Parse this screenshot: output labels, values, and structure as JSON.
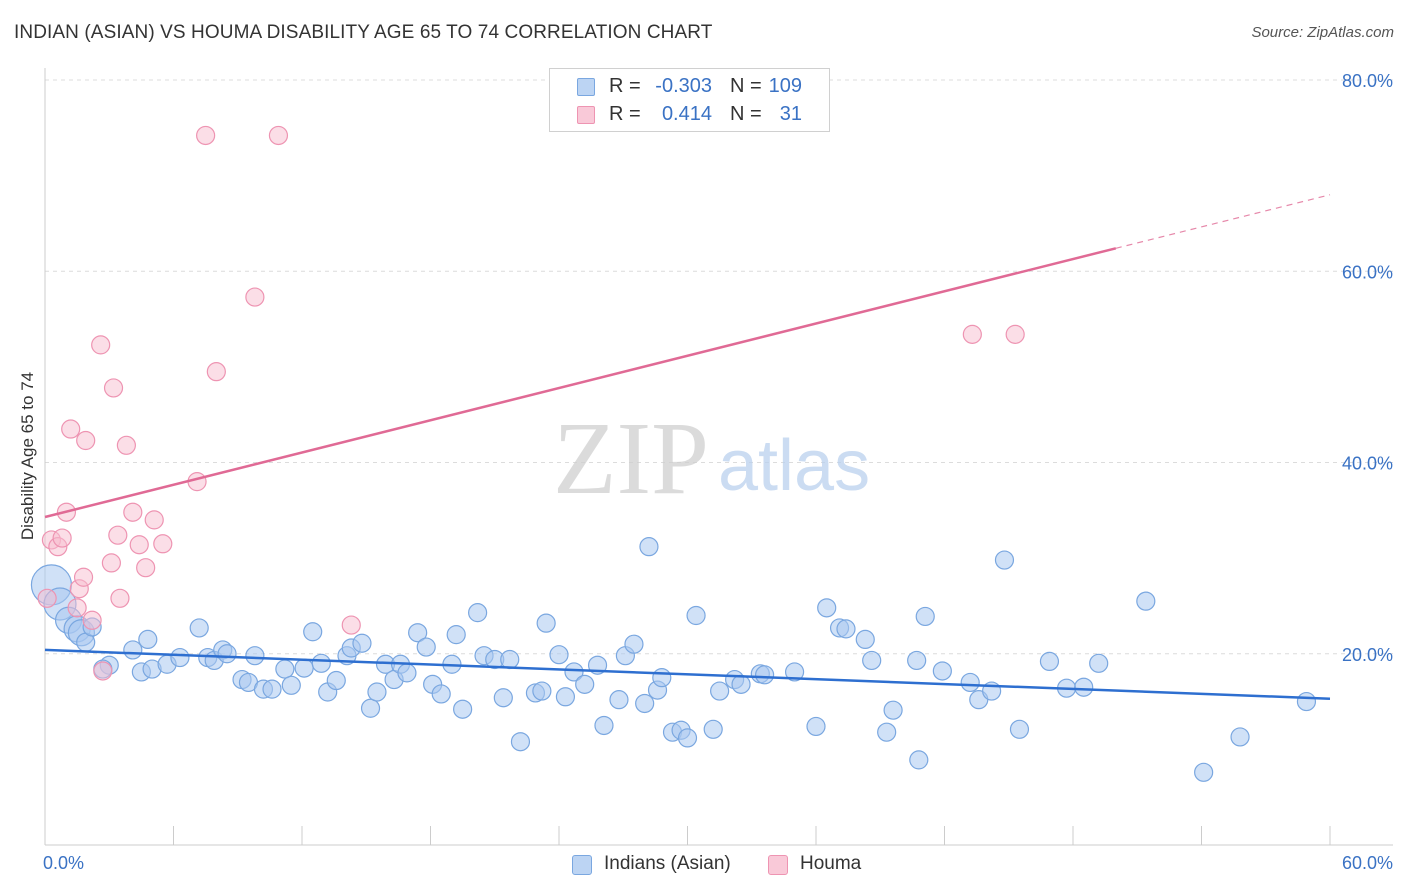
{
  "title": "INDIAN (ASIAN) VS HOUMA DISABILITY AGE 65 TO 74 CORRELATION CHART",
  "source": "Source: ZipAtlas.com",
  "watermark": {
    "zip": "ZIP",
    "atlas": "atlas"
  },
  "legend": {
    "r_label": "R =",
    "n_label": "N =",
    "rows": [
      {
        "r": "-0.303",
        "n": "109",
        "fill": "#bcd4f3",
        "stroke": "#7aa7e0"
      },
      {
        "r": "0.414",
        "n": "31",
        "fill": "#f9c9d8",
        "stroke": "#ee94b2"
      }
    ]
  },
  "bottom_legend": [
    "Indians (Asian)",
    "Houma"
  ],
  "chart_data": {
    "type": "scatter",
    "title": "INDIAN (ASIAN) VS HOUMA DISABILITY AGE 65 TO 74 CORRELATION CHART",
    "xlabel": "",
    "ylabel": "Disability Age 65 to 74",
    "xlim": [
      0,
      60
    ],
    "ylim": [
      0,
      80
    ],
    "x_tick_labels": [
      "0.0%",
      "60.0%"
    ],
    "y_ticks": [
      20,
      40,
      60,
      80
    ],
    "y_tick_labels": [
      "20.0%",
      "40.0%",
      "60.0%",
      "80.0%"
    ],
    "grid": "horizontal dashed",
    "legend_placement": "top-center",
    "colors": {
      "blue_fill": "#a9c8f0",
      "blue_stroke": "#7aa7e0",
      "blue_line": "#2e6fd0",
      "pink_fill": "#f7bdd0",
      "pink_stroke": "#ee94b2",
      "pink_line": "#e06a95"
    },
    "series": [
      {
        "name": "Indians (Asian)",
        "r": -0.303,
        "n": 109,
        "trend": {
          "x0": 0,
          "y0": 20.4,
          "x1": 60,
          "y1": 15.3
        },
        "points": [
          [
            0.3,
            27.2,
            3
          ],
          [
            0.7,
            25.2,
            2
          ],
          [
            1.1,
            23.5,
            1
          ],
          [
            1.5,
            22.6,
            1
          ],
          [
            1.7,
            22.2,
            1
          ],
          [
            1.9,
            21.2,
            0
          ],
          [
            2.2,
            22.8,
            0
          ],
          [
            3.0,
            18.8,
            0
          ],
          [
            2.7,
            18.4,
            0
          ],
          [
            4.1,
            20.4,
            0
          ],
          [
            4.5,
            18.1,
            0
          ],
          [
            4.8,
            21.5,
            0
          ],
          [
            5.0,
            18.4,
            0
          ],
          [
            5.7,
            18.9,
            0
          ],
          [
            6.3,
            19.6,
            0
          ],
          [
            7.2,
            22.7,
            0
          ],
          [
            7.6,
            19.6,
            0
          ],
          [
            7.9,
            19.3,
            0
          ],
          [
            8.3,
            20.4,
            0
          ],
          [
            8.5,
            20.0,
            0
          ],
          [
            9.2,
            17.3,
            0
          ],
          [
            9.5,
            17.0,
            0
          ],
          [
            9.8,
            19.8,
            0
          ],
          [
            10.2,
            16.3,
            0
          ],
          [
            10.6,
            16.3,
            0
          ],
          [
            11.2,
            18.4,
            0
          ],
          [
            11.5,
            16.7,
            0
          ],
          [
            12.1,
            18.5,
            0
          ],
          [
            12.5,
            22.3,
            0
          ],
          [
            12.9,
            19.0,
            0
          ],
          [
            13.2,
            16.0,
            0
          ],
          [
            13.6,
            17.2,
            0
          ],
          [
            14.1,
            19.8,
            0
          ],
          [
            14.3,
            20.6,
            0
          ],
          [
            14.8,
            21.1,
            0
          ],
          [
            15.2,
            14.3,
            0
          ],
          [
            15.5,
            16.0,
            0
          ],
          [
            15.9,
            18.9,
            0
          ],
          [
            16.3,
            17.3,
            0
          ],
          [
            16.6,
            18.9,
            0
          ],
          [
            16.9,
            18.0,
            0
          ],
          [
            17.4,
            22.2,
            0
          ],
          [
            17.8,
            20.7,
            0
          ],
          [
            18.1,
            16.8,
            0
          ],
          [
            18.5,
            15.8,
            0
          ],
          [
            19.0,
            18.9,
            0
          ],
          [
            19.2,
            22.0,
            0
          ],
          [
            19.5,
            14.2,
            0
          ],
          [
            20.2,
            24.3,
            0
          ],
          [
            20.5,
            19.8,
            0
          ],
          [
            21.0,
            19.4,
            0
          ],
          [
            21.4,
            15.4,
            0
          ],
          [
            21.7,
            19.4,
            0
          ],
          [
            22.2,
            10.8,
            0
          ],
          [
            22.9,
            15.9,
            0
          ],
          [
            23.2,
            16.1,
            0
          ],
          [
            23.4,
            23.2,
            0
          ],
          [
            24.0,
            19.9,
            0
          ],
          [
            24.3,
            15.5,
            0
          ],
          [
            24.7,
            18.1,
            0
          ],
          [
            25.2,
            16.8,
            0
          ],
          [
            25.8,
            18.8,
            0
          ],
          [
            26.1,
            12.5,
            0
          ],
          [
            26.8,
            15.2,
            0
          ],
          [
            27.1,
            19.8,
            0
          ],
          [
            27.5,
            21.0,
            0
          ],
          [
            28.0,
            14.8,
            0
          ],
          [
            28.2,
            31.2,
            0
          ],
          [
            28.6,
            16.2,
            0
          ],
          [
            28.8,
            17.5,
            0
          ],
          [
            29.3,
            11.8,
            0
          ],
          [
            29.7,
            12.0,
            0
          ],
          [
            30.0,
            11.2,
            0
          ],
          [
            30.4,
            24.0,
            0
          ],
          [
            31.2,
            12.1,
            0
          ],
          [
            31.5,
            16.1,
            0
          ],
          [
            32.2,
            17.3,
            0
          ],
          [
            32.5,
            16.8,
            0
          ],
          [
            33.4,
            17.9,
            0
          ],
          [
            33.6,
            17.8,
            0
          ],
          [
            35.0,
            18.1,
            0
          ],
          [
            36.0,
            12.4,
            0
          ],
          [
            36.5,
            24.8,
            0
          ],
          [
            37.1,
            22.7,
            0
          ],
          [
            37.4,
            22.6,
            0
          ],
          [
            38.3,
            21.5,
            0
          ],
          [
            38.6,
            19.3,
            0
          ],
          [
            39.3,
            11.8,
            0
          ],
          [
            39.6,
            14.1,
            0
          ],
          [
            40.7,
            19.3,
            0
          ],
          [
            40.8,
            8.9,
            0
          ],
          [
            41.1,
            23.9,
            0
          ],
          [
            41.9,
            18.2,
            0
          ],
          [
            43.2,
            17.0,
            0
          ],
          [
            43.6,
            15.2,
            0
          ],
          [
            44.2,
            16.1,
            0
          ],
          [
            44.8,
            29.8,
            0
          ],
          [
            45.5,
            12.1,
            0
          ],
          [
            46.9,
            19.2,
            0
          ],
          [
            47.7,
            16.4,
            0
          ],
          [
            48.5,
            16.5,
            0
          ],
          [
            49.2,
            19.0,
            0
          ],
          [
            51.4,
            25.5,
            0
          ],
          [
            54.1,
            7.6,
            0
          ],
          [
            55.8,
            11.3,
            0
          ],
          [
            58.9,
            15.0,
            0
          ]
        ]
      },
      {
        "name": "Houma",
        "r": 0.414,
        "n": 31,
        "trend": {
          "x0": 0,
          "y0": 34.3,
          "x1": 50,
          "y1": 62.4
        },
        "trend_dashed_to": {
          "x": 60,
          "y": 68.0
        },
        "points": [
          [
            0.1,
            25.8
          ],
          [
            0.3,
            31.9
          ],
          [
            0.6,
            31.2
          ],
          [
            0.8,
            32.1
          ],
          [
            1.0,
            34.8
          ],
          [
            1.2,
            43.5
          ],
          [
            1.5,
            24.8
          ],
          [
            1.6,
            26.8
          ],
          [
            1.8,
            28.0
          ],
          [
            1.9,
            42.3
          ],
          [
            2.2,
            23.5
          ],
          [
            2.6,
            52.3
          ],
          [
            2.7,
            18.2
          ],
          [
            3.1,
            29.5
          ],
          [
            3.2,
            47.8
          ],
          [
            3.4,
            32.4
          ],
          [
            3.5,
            25.8
          ],
          [
            3.8,
            41.8
          ],
          [
            4.1,
            34.8
          ],
          [
            4.4,
            31.4
          ],
          [
            4.7,
            29.0
          ],
          [
            5.1,
            34.0
          ],
          [
            5.5,
            31.5
          ],
          [
            7.1,
            38.0
          ],
          [
            7.5,
            74.2
          ],
          [
            8.0,
            49.5
          ],
          [
            9.8,
            57.3
          ],
          [
            10.9,
            74.2
          ],
          [
            14.3,
            23.0
          ],
          [
            43.3,
            53.4
          ],
          [
            45.3,
            53.4
          ]
        ]
      }
    ]
  }
}
